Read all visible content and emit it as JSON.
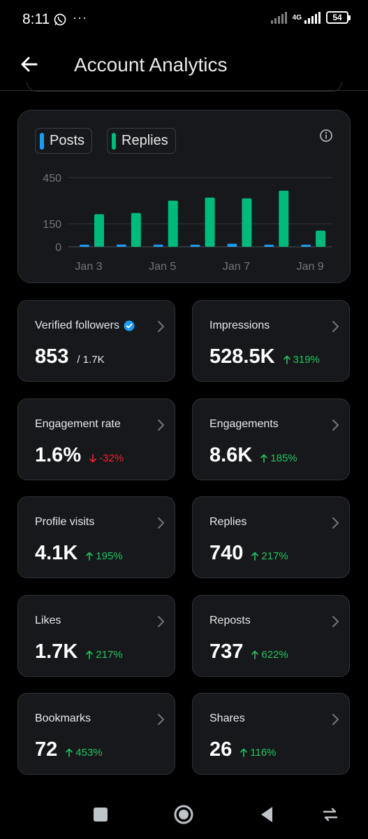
{
  "status_bar": {
    "time": "8:11",
    "dots": "···",
    "network": "4G",
    "battery": "54"
  },
  "header": {
    "title": "Account Analytics"
  },
  "chart": {
    "legend": [
      {
        "label": "Posts",
        "color": "#1d9bf0"
      },
      {
        "label": "Replies",
        "color": "#00ba7c"
      }
    ],
    "y_tick_labels": [
      "450",
      "150",
      "0"
    ],
    "x_tick_labels": [
      "Jan 3",
      "Jan 5",
      "Jan 7",
      "Jan 9"
    ]
  },
  "chart_data": {
    "type": "bar",
    "categories": [
      "Jan 3",
      "Jan 4",
      "Jan 5",
      "Jan 6",
      "Jan 7",
      "Jan 8",
      "Jan 9"
    ],
    "series": [
      {
        "name": "Posts",
        "color": "#1d9bf0",
        "values": [
          12,
          15,
          14,
          12,
          20,
          13,
          5
        ]
      },
      {
        "name": "Replies",
        "color": "#00ba7c",
        "values": [
          212,
          220,
          300,
          320,
          315,
          365,
          105
        ]
      }
    ],
    "yticks": [
      0,
      150,
      450
    ],
    "ylim": [
      0,
      450
    ],
    "legend": "top-left",
    "grid": true
  },
  "metrics": [
    {
      "label": "Verified followers",
      "value": "853",
      "sub": "/ 1.7K",
      "change": "",
      "direction": "",
      "verified": true
    },
    {
      "label": "Impressions",
      "value": "528.5K",
      "sub": "",
      "change": "319%",
      "direction": "up"
    },
    {
      "label": "Engagement rate",
      "value": "1.6%",
      "sub": "",
      "change": "-32%",
      "direction": "down"
    },
    {
      "label": "Engagements",
      "value": "8.6K",
      "sub": "",
      "change": "185%",
      "direction": "up"
    },
    {
      "label": "Profile visits",
      "value": "4.1K",
      "sub": "",
      "change": "195%",
      "direction": "up"
    },
    {
      "label": "Replies",
      "value": "740",
      "sub": "",
      "change": "217%",
      "direction": "up"
    },
    {
      "label": "Likes",
      "value": "1.7K",
      "sub": "",
      "change": "217%",
      "direction": "up"
    },
    {
      "label": "Reposts",
      "value": "737",
      "sub": "",
      "change": "622%",
      "direction": "up"
    },
    {
      "label": "Bookmarks",
      "value": "72",
      "sub": "",
      "change": "453%",
      "direction": "up"
    },
    {
      "label": "Shares",
      "value": "26",
      "sub": "",
      "change": "116%",
      "direction": "up"
    }
  ],
  "nav": {
    "buttons": [
      "recents-icon",
      "home-icon",
      "back-triangle-icon",
      "rotate-icon"
    ]
  }
}
